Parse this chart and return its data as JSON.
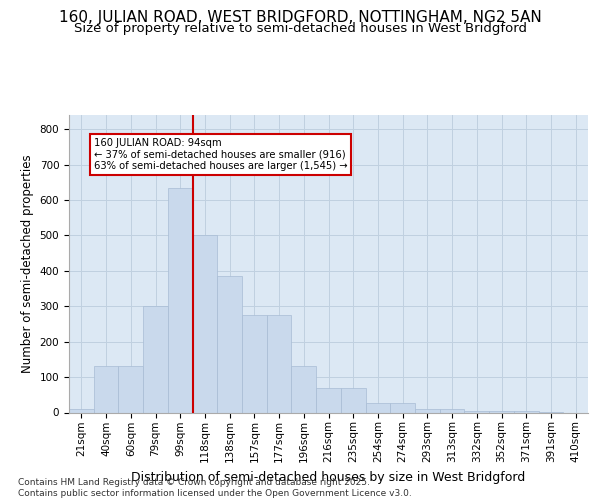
{
  "title1": "160, JULIAN ROAD, WEST BRIDGFORD, NOTTINGHAM, NG2 5AN",
  "title2": "Size of property relative to semi-detached houses in West Bridgford",
  "xlabel": "Distribution of semi-detached houses by size in West Bridgford",
  "ylabel": "Number of semi-detached properties",
  "categories": [
    "21sqm",
    "40sqm",
    "60sqm",
    "79sqm",
    "99sqm",
    "118sqm",
    "138sqm",
    "157sqm",
    "177sqm",
    "196sqm",
    "216sqm",
    "235sqm",
    "254sqm",
    "274sqm",
    "293sqm",
    "313sqm",
    "332sqm",
    "352sqm",
    "371sqm",
    "391sqm",
    "410sqm"
  ],
  "values": [
    10,
    130,
    130,
    300,
    635,
    500,
    385,
    275,
    275,
    130,
    70,
    70,
    28,
    28,
    10,
    10,
    5,
    5,
    5,
    2,
    0
  ],
  "bar_color": "#c9d9ec",
  "bar_edgecolor": "#a8bcd4",
  "vline_x_index": 4,
  "vline_color": "#cc0000",
  "annotation_line1": "160 JULIAN ROAD: 94sqm",
  "annotation_line2": "← 37% of semi-detached houses are smaller (916)",
  "annotation_line3": "63% of semi-detached houses are larger (1,545) →",
  "annotation_box_facecolor": "#ffffff",
  "annotation_box_edgecolor": "#cc0000",
  "ylim": [
    0,
    840
  ],
  "yticks": [
    0,
    100,
    200,
    300,
    400,
    500,
    600,
    700,
    800
  ],
  "grid_color": "#c0d0e0",
  "bg_color": "#dce8f4",
  "footer_text": "Contains HM Land Registry data © Crown copyright and database right 2025.\nContains public sector information licensed under the Open Government Licence v3.0.",
  "title1_fontsize": 11,
  "title2_fontsize": 9.5,
  "xlabel_fontsize": 9,
  "ylabel_fontsize": 8.5,
  "tick_fontsize": 7.5,
  "footer_fontsize": 6.5
}
